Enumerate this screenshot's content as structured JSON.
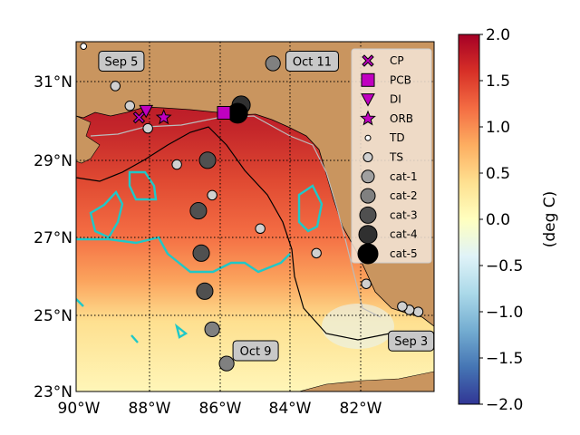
{
  "map": {
    "lon_ticks": [
      "90°W",
      "88°W",
      "86°W",
      "84°W",
      "82°W"
    ],
    "lat_ticks": [
      "31°N",
      "29°N",
      "27°N",
      "25°N",
      "23°N"
    ],
    "lon_range": [
      -90.08,
      -79.95
    ],
    "lat_range": [
      23.0,
      32.0
    ],
    "annotations": [
      {
        "text": "Sep 5",
        "lon": -88.8,
        "lat": 31.5
      },
      {
        "text": "Oct 11",
        "lon": -83.4,
        "lat": 31.5
      },
      {
        "text": "Oct 9",
        "lon": -85.0,
        "lat": 24.05
      },
      {
        "text": "Sep 3",
        "lon": -80.6,
        "lat": 24.3
      }
    ],
    "legend": [
      {
        "label": "CP",
        "marker": "x-mark",
        "color": "#c000c0"
      },
      {
        "label": "PCB",
        "marker": "square",
        "color": "#c000c0"
      },
      {
        "label": "DI",
        "marker": "triangle-down",
        "color": "#c000c0"
      },
      {
        "label": "ORB",
        "marker": "star",
        "color": "#c000c0"
      },
      {
        "label": "TD",
        "marker": "circle",
        "color": "#ffffff",
        "size": 3
      },
      {
        "label": "TS",
        "marker": "circle",
        "color": "#d0d0d0",
        "size": 5
      },
      {
        "label": "cat-1",
        "marker": "circle",
        "color": "#a0a0a0",
        "size": 7
      },
      {
        "label": "cat-2",
        "marker": "circle",
        "color": "#808080",
        "size": 8
      },
      {
        "label": "cat-3",
        "marker": "circle",
        "color": "#505050",
        "size": 9
      },
      {
        "label": "cat-4",
        "marker": "circle",
        "color": "#303030",
        "size": 10
      },
      {
        "label": "cat-5",
        "marker": "circle",
        "color": "#000000",
        "size": 11
      }
    ],
    "stations": [
      {
        "name": "CP",
        "marker": "x-mark",
        "lon": -88.3,
        "lat": 30.05
      },
      {
        "name": "DI",
        "marker": "triangle-down",
        "lon": -88.1,
        "lat": 30.22
      },
      {
        "name": "ORB",
        "marker": "star",
        "lon": -87.6,
        "lat": 30.05
      },
      {
        "name": "PCB",
        "marker": "square",
        "lon": -85.9,
        "lat": 30.17
      }
    ],
    "track": [
      {
        "lon": -80.4,
        "lat": 25.05,
        "cat": "TS"
      },
      {
        "lon": -80.65,
        "lat": 25.1,
        "cat": "TS"
      },
      {
        "lon": -80.85,
        "lat": 25.19,
        "cat": "TS"
      },
      {
        "lon": -81.87,
        "lat": 25.77,
        "cat": "TS"
      },
      {
        "lon": -83.28,
        "lat": 26.56,
        "cat": "TS"
      },
      {
        "lon": -84.87,
        "lat": 27.19,
        "cat": "TS"
      },
      {
        "lon": -84.51,
        "lat": 31.44,
        "cat": "cat-2"
      },
      {
        "lon": -85.41,
        "lat": 30.37,
        "cat": "cat-4"
      },
      {
        "lon": -85.51,
        "lat": 30.16,
        "cat": "cat-5"
      },
      {
        "lon": -85.82,
        "lat": 23.72,
        "cat": "cat-2"
      },
      {
        "lon": -86.23,
        "lat": 24.6,
        "cat": "cat-2"
      },
      {
        "lon": -86.44,
        "lat": 25.58,
        "cat": "cat-3"
      },
      {
        "lon": -86.54,
        "lat": 26.56,
        "cat": "cat-3"
      },
      {
        "lon": -86.62,
        "lat": 27.65,
        "cat": "cat-3"
      },
      {
        "lon": -86.23,
        "lat": 28.05,
        "cat": "TS"
      },
      {
        "lon": -86.36,
        "lat": 28.95,
        "cat": "cat-3"
      },
      {
        "lon": -87.23,
        "lat": 28.84,
        "cat": "TS"
      },
      {
        "lon": -88.05,
        "lat": 29.77,
        "cat": "TS"
      },
      {
        "lon": -88.56,
        "lat": 30.35,
        "cat": "TS"
      },
      {
        "lon": -88.97,
        "lat": 30.86,
        "cat": "TS"
      },
      {
        "lon": -89.87,
        "lat": 31.88,
        "cat": "TD"
      }
    ]
  },
  "colorbar": {
    "label": "(deg C)",
    "ticks": [
      "2.0",
      "1.5",
      "1.0",
      "0.5",
      "0.0",
      "−0.5",
      "−1.0",
      "−1.5",
      "−2.0"
    ],
    "range": [
      -2.0,
      2.0
    ],
    "colors": [
      "#a50026",
      "#d73027",
      "#f46d43",
      "#fdae61",
      "#fee090",
      "#ffffbf",
      "#e0f3f8",
      "#abd9e9",
      "#74add1",
      "#4575b4",
      "#313695"
    ]
  }
}
